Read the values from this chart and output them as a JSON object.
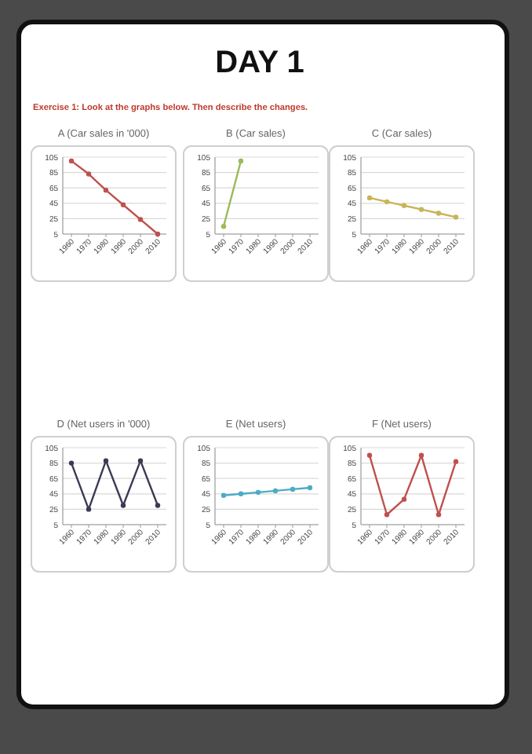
{
  "chart_data": [
    {
      "type": "other",
      "title": "DAY 1",
      "subtitle": "Exercise 1: Look at the graphs below. Then describe the changes."
    },
    {
      "type": "line",
      "title": "A (Car sales in '000)",
      "categories": [
        "1960",
        "1970",
        "1980",
        "1990",
        "2000",
        "2010"
      ],
      "series": [
        {
          "color": "#c0504d",
          "values": [
            100,
            83,
            62,
            43,
            24,
            5
          ]
        }
      ],
      "ylim": [
        5,
        105
      ],
      "yticks": [
        5,
        25,
        45,
        65,
        85,
        105
      ],
      "grid": "y",
      "marker": "circle"
    },
    {
      "type": "line",
      "title": "B (Car sales)",
      "categories": [
        "1960",
        "1970",
        "1980",
        "1990",
        "2000",
        "2010"
      ],
      "series": [
        {
          "color": "#9bbb59",
          "values": [
            15,
            100,
            null,
            null,
            null,
            null
          ]
        }
      ],
      "ylim": [
        5,
        105
      ],
      "yticks": [
        5,
        25,
        45,
        65,
        85,
        105
      ],
      "grid": "y",
      "marker": "circle"
    },
    {
      "type": "line",
      "title": "C (Car sales)",
      "categories": [
        "1960",
        "1970",
        "1980",
        "1990",
        "2000",
        "2010"
      ],
      "series": [
        {
          "color": "#c9b458",
          "values": [
            52,
            47,
            42,
            37,
            32,
            27
          ]
        }
      ],
      "ylim": [
        5,
        105
      ],
      "yticks": [
        5,
        25,
        45,
        65,
        85,
        105
      ],
      "grid": "y",
      "marker": "circle"
    },
    {
      "type": "line",
      "title": "D (Net users in '000)",
      "categories": [
        "1960",
        "1970",
        "1980",
        "1990",
        "2000",
        "2010"
      ],
      "series": [
        {
          "color": "#3a3a55",
          "values": [
            85,
            25,
            88,
            30,
            88,
            30
          ]
        }
      ],
      "ylim": [
        5,
        105
      ],
      "yticks": [
        5,
        25,
        45,
        65,
        85,
        105
      ],
      "grid": "y",
      "marker": "circle"
    },
    {
      "type": "line",
      "title": "E (Net users)",
      "categories": [
        "1960",
        "1970",
        "1980",
        "1990",
        "2000",
        "2010"
      ],
      "series": [
        {
          "color": "#4bacc6",
          "values": [
            43,
            45,
            47,
            49,
            51,
            53
          ]
        }
      ],
      "ylim": [
        5,
        105
      ],
      "yticks": [
        5,
        25,
        45,
        65,
        85,
        105
      ],
      "grid": "y",
      "marker": "circle"
    },
    {
      "type": "line",
      "title": "F (Net users)",
      "categories": [
        "1960",
        "1970",
        "1980",
        "1990",
        "2000",
        "2010"
      ],
      "series": [
        {
          "color": "#c0504d",
          "values": [
            95,
            18,
            38,
            95,
            18,
            87
          ]
        }
      ],
      "ylim": [
        5,
        105
      ],
      "yticks": [
        5,
        25,
        45,
        65,
        85,
        105
      ],
      "grid": "y",
      "marker": "circle"
    }
  ]
}
